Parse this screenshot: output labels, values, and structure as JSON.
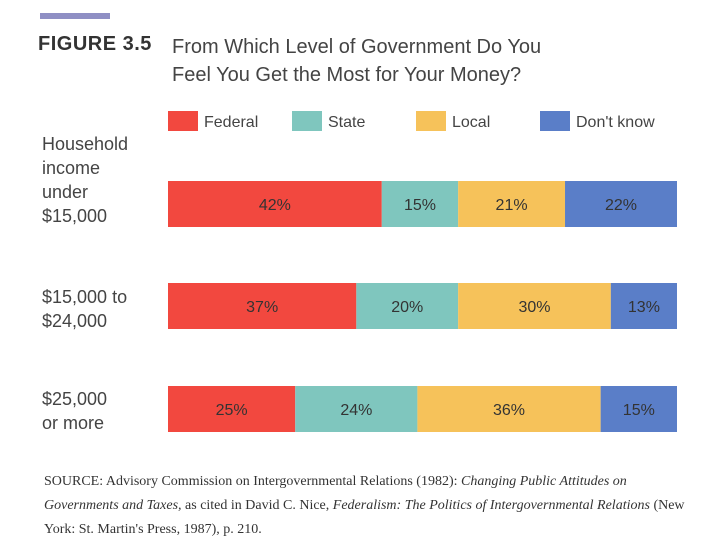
{
  "figure": {
    "label": "FIGURE 3.5",
    "title_line1": "From Which Level of Government Do You",
    "title_line2": "Feel You Get the Most for Your Money?"
  },
  "colors": {
    "Federal": "#f2483f",
    "State": "#7fc6be",
    "Local": "#f6c25a",
    "Don't know": "#5a7ec8"
  },
  "chart_data": {
    "type": "bar",
    "orientation": "horizontal",
    "stacked": true,
    "title": "From Which Level of Government Do You Feel You Get the Most for Your Money?",
    "categories": [
      [
        "Household",
        "income",
        "under",
        "$15,000"
      ],
      [
        "$15,000 to",
        "$24,000"
      ],
      [
        "$25,000",
        "or more"
      ]
    ],
    "series": [
      {
        "name": "Federal",
        "values": [
          42,
          37,
          25
        ]
      },
      {
        "name": "State",
        "values": [
          15,
          20,
          24
        ]
      },
      {
        "name": "Local",
        "values": [
          21,
          30,
          36
        ]
      },
      {
        "name": "Don't know",
        "values": [
          22,
          13,
          15
        ]
      }
    ],
    "value_suffix": "%",
    "xlim": [
      0,
      100
    ],
    "legend": "top"
  },
  "source": {
    "prefix": "SOURCE: Advisory Commission on Intergovernmental Relations (1982): ",
    "italic1": "Changing Public Attitudes on Governments and Taxes,",
    "middle": " as cited in David C. Nice, ",
    "italic2": "Federalism: The Politics of Intergovernmental Relations",
    "suffix": " (New York: St. Martin's Press, 1987), p. 210."
  }
}
